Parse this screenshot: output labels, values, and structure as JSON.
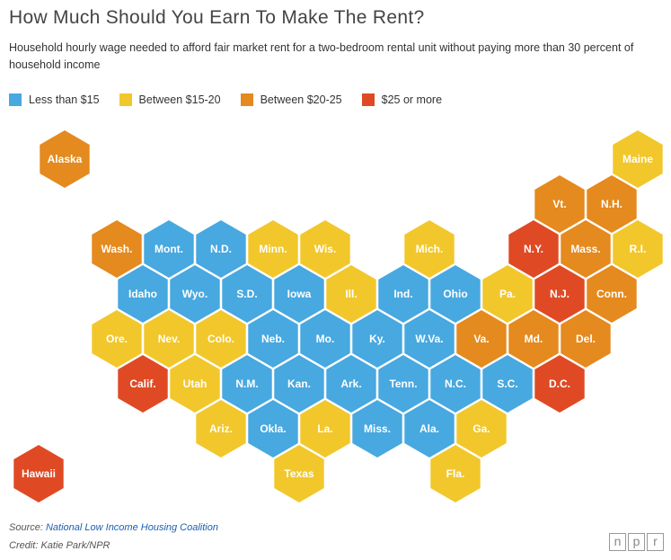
{
  "title": "How Much Should You Earn To Make The Rent?",
  "subtitle": "Household hourly wage needed to afford fair market rent for a two-bedroom rental unit without paying more than 30 percent of household income",
  "legend": [
    {
      "label": "Less than $15",
      "color": "#48a8e0"
    },
    {
      "label": "Between $15-20",
      "color": "#f2c72b"
    },
    {
      "label": "Between $20-25",
      "color": "#e48a1e"
    },
    {
      "label": "$25 or more",
      "color": "#df4a25"
    }
  ],
  "states": [
    {
      "label": "Alaska",
      "group": 2
    },
    {
      "label": "Maine",
      "group": 1
    },
    {
      "label": "Vt.",
      "group": 2
    },
    {
      "label": "N.H.",
      "group": 2
    },
    {
      "label": "Wash.",
      "group": 2
    },
    {
      "label": "Mont.",
      "group": 0
    },
    {
      "label": "N.D.",
      "group": 0
    },
    {
      "label": "Minn.",
      "group": 1
    },
    {
      "label": "Wis.",
      "group": 1
    },
    {
      "label": "Mich.",
      "group": 1
    },
    {
      "label": "N.Y.",
      "group": 3
    },
    {
      "label": "Mass.",
      "group": 2
    },
    {
      "label": "R.I.",
      "group": 1
    },
    {
      "label": "Idaho",
      "group": 0
    },
    {
      "label": "Wyo.",
      "group": 0
    },
    {
      "label": "S.D.",
      "group": 0
    },
    {
      "label": "Iowa",
      "group": 0
    },
    {
      "label": "Ill.",
      "group": 1
    },
    {
      "label": "Ind.",
      "group": 0
    },
    {
      "label": "Ohio",
      "group": 0
    },
    {
      "label": "Pa.",
      "group": 1
    },
    {
      "label": "N.J.",
      "group": 3
    },
    {
      "label": "Conn.",
      "group": 2
    },
    {
      "label": "Ore.",
      "group": 1
    },
    {
      "label": "Nev.",
      "group": 1
    },
    {
      "label": "Colo.",
      "group": 1
    },
    {
      "label": "Neb.",
      "group": 0
    },
    {
      "label": "Mo.",
      "group": 0
    },
    {
      "label": "Ky.",
      "group": 0
    },
    {
      "label": "W.Va.",
      "group": 0
    },
    {
      "label": "Va.",
      "group": 2
    },
    {
      "label": "Md.",
      "group": 2
    },
    {
      "label": "Del.",
      "group": 2
    },
    {
      "label": "Calif.",
      "group": 3
    },
    {
      "label": "Utah",
      "group": 1
    },
    {
      "label": "N.M.",
      "group": 0
    },
    {
      "label": "Kan.",
      "group": 0
    },
    {
      "label": "Ark.",
      "group": 0
    },
    {
      "label": "Tenn.",
      "group": 0
    },
    {
      "label": "N.C.",
      "group": 0
    },
    {
      "label": "S.C.",
      "group": 0
    },
    {
      "label": "D.C.",
      "group": 3
    },
    {
      "label": "Ariz.",
      "group": 1
    },
    {
      "label": "Okla.",
      "group": 0
    },
    {
      "label": "La.",
      "group": 1
    },
    {
      "label": "Miss.",
      "group": 0
    },
    {
      "label": "Ala.",
      "group": 0
    },
    {
      "label": "Ga.",
      "group": 1
    },
    {
      "label": "Hawaii",
      "group": 3
    },
    {
      "label": "Texas",
      "group": 1
    },
    {
      "label": "Fla.",
      "group": 1
    }
  ],
  "source_label": "Source:",
  "source_link": "National Low Income Housing Coalition",
  "credit": "Credit: Katie Park/NPR",
  "logo": [
    "n",
    "p",
    "r"
  ]
}
